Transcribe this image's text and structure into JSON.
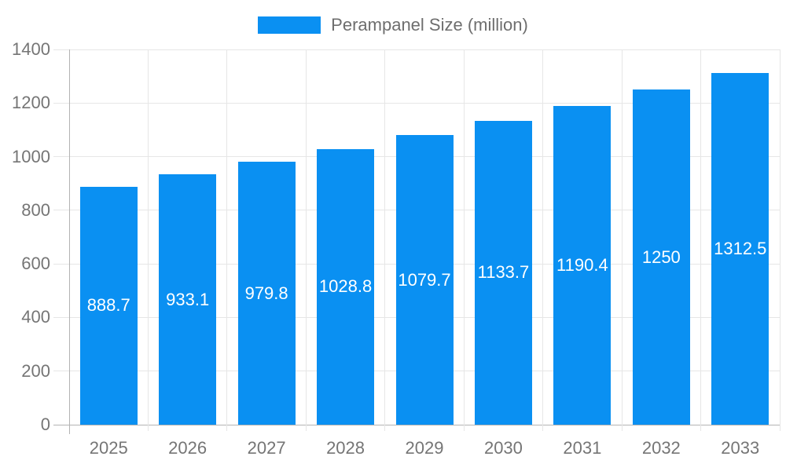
{
  "legend": {
    "label": "Perampanel Size (million)"
  },
  "colors": {
    "bar": "#0A90F2",
    "axis_text": "#757575",
    "legend_text": "#6E6E6E",
    "grid": "#E6E6E6",
    "axis_line": "#B3B3B3",
    "value_label": "#FFFFFF"
  },
  "chart_data": {
    "type": "bar",
    "title": "Perampanel Size (million)",
    "categories": [
      "2025",
      "2026",
      "2027",
      "2028",
      "2029",
      "2030",
      "2031",
      "2032",
      "2033"
    ],
    "values": [
      888.7,
      933.1,
      979.8,
      1028.8,
      1079.7,
      1133.7,
      1190.4,
      1250,
      1312.5
    ],
    "series": [
      {
        "name": "Perampanel Size (million)",
        "values": [
          888.7,
          933.1,
          979.8,
          1028.8,
          1079.7,
          1133.7,
          1190.4,
          1250,
          1312.5
        ]
      }
    ],
    "xlabel": "",
    "ylabel": "",
    "ylim": [
      0,
      1400
    ],
    "y_ticks": [
      0,
      200,
      400,
      600,
      800,
      1000,
      1200,
      1400
    ],
    "grid": true,
    "legend_position": "top-center",
    "value_labels": "inside-center-white"
  }
}
